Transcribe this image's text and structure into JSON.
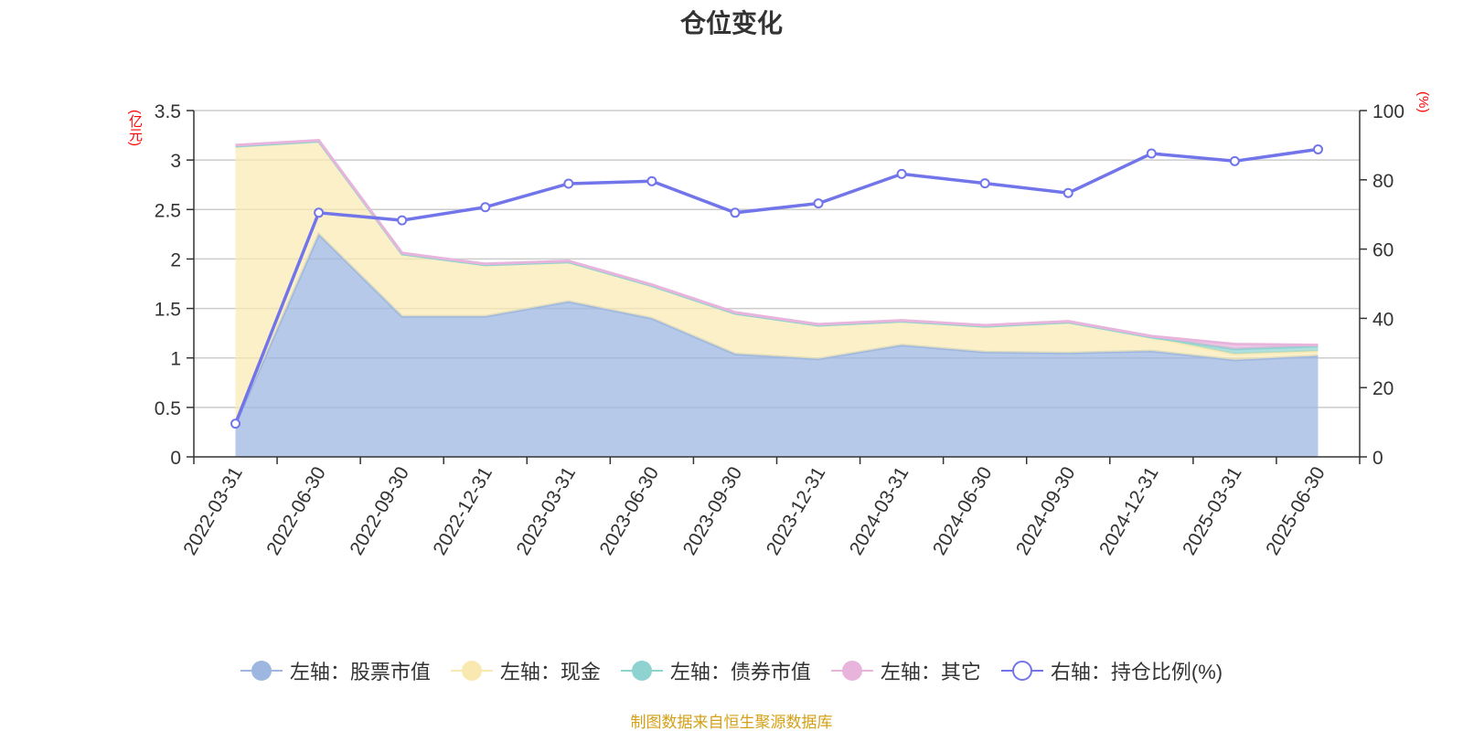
{
  "chart_data": {
    "type": "area",
    "title": "仓位变化",
    "left_axis_unit": "(亿元)",
    "right_axis_unit": "(%)",
    "categories": [
      "2022-03-31",
      "2022-06-30",
      "2022-09-30",
      "2022-12-31",
      "2023-03-31",
      "2023-06-30",
      "2023-09-30",
      "2023-12-31",
      "2024-03-31",
      "2024-06-30",
      "2024-09-30",
      "2024-12-31",
      "2025-03-31",
      "2025-06-30"
    ],
    "left_axis": {
      "ylim": [
        0,
        3.5
      ],
      "ticks": [
        "0",
        "0.5",
        "1",
        "1.5",
        "2",
        "2.5",
        "3",
        "3.5"
      ]
    },
    "right_axis": {
      "ylim": [
        0,
        100
      ],
      "ticks": [
        "0",
        "20",
        "40",
        "60",
        "80",
        "100"
      ]
    },
    "series": [
      {
        "name": "左轴：股票市值",
        "axis": "left",
        "stack": true,
        "color": "#9db7e0",
        "values": [
          0.33,
          2.25,
          1.42,
          1.42,
          1.57,
          1.4,
          1.04,
          0.99,
          1.13,
          1.06,
          1.05,
          1.07,
          0.98,
          1.02
        ]
      },
      {
        "name": "左轴：现金",
        "axis": "left",
        "stack": true,
        "color": "#f9e9b0",
        "values": [
          2.81,
          0.94,
          0.63,
          0.52,
          0.4,
          0.33,
          0.41,
          0.34,
          0.24,
          0.26,
          0.31,
          0.14,
          0.06,
          0.05
        ]
      },
      {
        "name": "左轴：债券市值",
        "axis": "left",
        "stack": true,
        "color": "#8fd3d1",
        "values": [
          0,
          0,
          0,
          0,
          0,
          0,
          0,
          0,
          0,
          0,
          0,
          0,
          0.05,
          0.05
        ]
      },
      {
        "name": "左轴：其它",
        "axis": "left",
        "stack": true,
        "color": "#e8b4dc",
        "values": [
          0.01,
          0.01,
          0.01,
          0.01,
          0.01,
          0.01,
          0.01,
          0.01,
          0.01,
          0.01,
          0.01,
          0.01,
          0.05,
          0.01
        ]
      },
      {
        "name": "右轴：持仓比例(%)",
        "axis": "right",
        "stack": false,
        "color": "#7275ea",
        "values": [
          9.6,
          70.5,
          68.3,
          72.1,
          78.9,
          79.6,
          70.5,
          73.2,
          81.7,
          79.0,
          76.2,
          87.6,
          85.4,
          88.8
        ]
      }
    ]
  },
  "footer": {
    "source": "制图数据来自恒生聚源数据库"
  }
}
